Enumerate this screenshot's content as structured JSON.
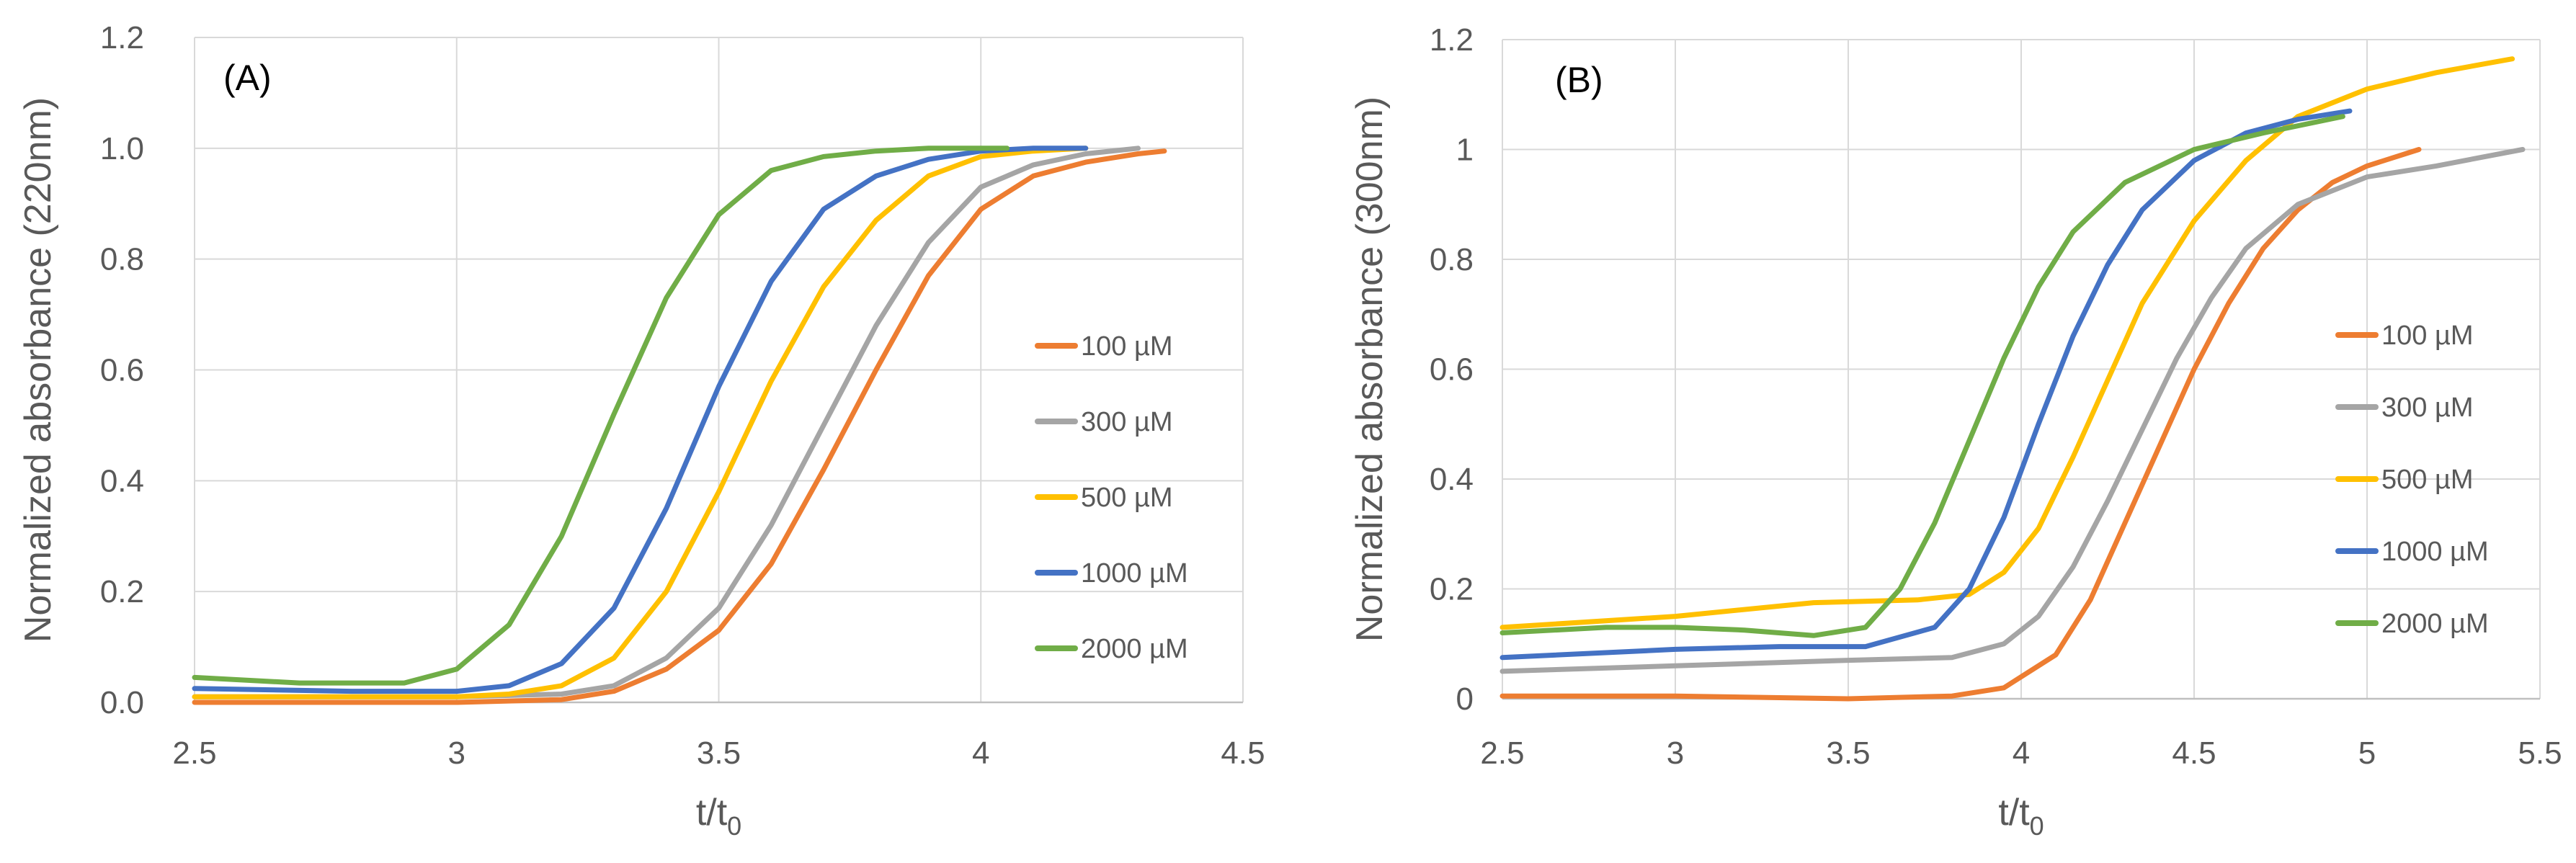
{
  "chart_data": [
    {
      "type": "line",
      "panel_label": "(A)",
      "xlabel_main": "t/t",
      "xlabel_sub": "0",
      "ylabel": "Normalized absorbance (220nm)",
      "xlim": [
        2.5,
        4.5
      ],
      "ylim": [
        0,
        1.2
      ],
      "xticks": [
        "2.5",
        "3",
        "3.5",
        "4",
        "4.5"
      ],
      "xtick_values": [
        2.5,
        3,
        3.5,
        4,
        4.5
      ],
      "yticks": [
        "0.0",
        "0.2",
        "0.4",
        "0.6",
        "0.8",
        "1.0",
        "1.2"
      ],
      "ytick_values": [
        0,
        0.2,
        0.4,
        0.6,
        0.8,
        1.0,
        1.2
      ],
      "grid": true,
      "legend_position": "right",
      "series": [
        {
          "name": "100 µM",
          "color": "#ED7D31",
          "x": [
            2.5,
            2.8,
            3.0,
            3.2,
            3.3,
            3.4,
            3.5,
            3.6,
            3.7,
            3.8,
            3.9,
            4.0,
            4.1,
            4.2,
            4.3,
            4.35
          ],
          "y": [
            0.0,
            0.0,
            0.0,
            0.005,
            0.02,
            0.06,
            0.13,
            0.25,
            0.42,
            0.6,
            0.77,
            0.89,
            0.95,
            0.975,
            0.99,
            0.995
          ]
        },
        {
          "name": "300 µM",
          "color": "#A5A5A5",
          "x": [
            2.5,
            2.8,
            3.0,
            3.2,
            3.3,
            3.4,
            3.5,
            3.6,
            3.7,
            3.8,
            3.9,
            4.0,
            4.1,
            4.2,
            4.3
          ],
          "y": [
            0.01,
            0.01,
            0.01,
            0.015,
            0.03,
            0.08,
            0.17,
            0.32,
            0.5,
            0.68,
            0.83,
            0.93,
            0.97,
            0.99,
            1.0
          ]
        },
        {
          "name": "500 µM",
          "color": "#FFC000",
          "x": [
            2.5,
            2.8,
            3.0,
            3.1,
            3.2,
            3.3,
            3.4,
            3.5,
            3.6,
            3.7,
            3.8,
            3.9,
            4.0,
            4.1,
            4.2
          ],
          "y": [
            0.01,
            0.01,
            0.01,
            0.015,
            0.03,
            0.08,
            0.2,
            0.38,
            0.58,
            0.75,
            0.87,
            0.95,
            0.985,
            0.995,
            1.0
          ]
        },
        {
          "name": "1000 µM",
          "color": "#4472C4",
          "x": [
            2.5,
            2.8,
            3.0,
            3.1,
            3.2,
            3.3,
            3.4,
            3.5,
            3.6,
            3.7,
            3.8,
            3.9,
            4.0,
            4.1,
            4.2
          ],
          "y": [
            0.025,
            0.02,
            0.02,
            0.03,
            0.07,
            0.17,
            0.35,
            0.57,
            0.76,
            0.89,
            0.95,
            0.98,
            0.995,
            1.0,
            1.0
          ]
        },
        {
          "name": "2000 µM",
          "color": "#70AD47",
          "x": [
            2.5,
            2.7,
            2.9,
            3.0,
            3.1,
            3.2,
            3.3,
            3.4,
            3.5,
            3.6,
            3.7,
            3.8,
            3.9,
            4.0,
            4.05
          ],
          "y": [
            0.045,
            0.035,
            0.035,
            0.06,
            0.14,
            0.3,
            0.52,
            0.73,
            0.88,
            0.96,
            0.985,
            0.995,
            1.0,
            1.0,
            1.0
          ]
        }
      ]
    },
    {
      "type": "line",
      "panel_label": "(B)",
      "xlabel_main": "t/t",
      "xlabel_sub": "0",
      "ylabel": "Normalized absorbance (300nm)",
      "xlim": [
        2.5,
        5.5
      ],
      "ylim": [
        0,
        1.2
      ],
      "xticks": [
        "2.5",
        "3",
        "3.5",
        "4",
        "4.5",
        "5",
        "5.5"
      ],
      "xtick_values": [
        2.5,
        3,
        3.5,
        4,
        4.5,
        5,
        5.5
      ],
      "yticks": [
        "0",
        "0.2",
        "0.4",
        "0.6",
        "0.8",
        "1",
        "1.2"
      ],
      "ytick_values": [
        0,
        0.2,
        0.4,
        0.6,
        0.8,
        1.0,
        1.2
      ],
      "grid": true,
      "legend_position": "right",
      "series": [
        {
          "name": "100 µM",
          "color": "#ED7D31",
          "x": [
            2.5,
            3.0,
            3.5,
            3.8,
            3.95,
            4.1,
            4.2,
            4.3,
            4.4,
            4.5,
            4.6,
            4.7,
            4.8,
            4.9,
            5.0,
            5.15
          ],
          "y": [
            0.005,
            0.005,
            0.0,
            0.005,
            0.02,
            0.08,
            0.18,
            0.32,
            0.46,
            0.6,
            0.72,
            0.82,
            0.89,
            0.94,
            0.97,
            1.0
          ]
        },
        {
          "name": "300 µM",
          "color": "#A5A5A5",
          "x": [
            2.5,
            3.0,
            3.5,
            3.8,
            3.95,
            4.05,
            4.15,
            4.25,
            4.35,
            4.45,
            4.55,
            4.65,
            4.8,
            5.0,
            5.2,
            5.45
          ],
          "y": [
            0.05,
            0.06,
            0.07,
            0.075,
            0.1,
            0.15,
            0.24,
            0.36,
            0.49,
            0.62,
            0.73,
            0.82,
            0.9,
            0.95,
            0.97,
            1.0
          ]
        },
        {
          "name": "500 µM",
          "color": "#FFC000",
          "x": [
            2.5,
            3.0,
            3.4,
            3.7,
            3.85,
            3.95,
            4.05,
            4.15,
            4.25,
            4.35,
            4.5,
            4.65,
            4.8,
            5.0,
            5.2,
            5.42
          ],
          "y": [
            0.13,
            0.15,
            0.175,
            0.18,
            0.19,
            0.23,
            0.31,
            0.44,
            0.58,
            0.72,
            0.87,
            0.98,
            1.06,
            1.11,
            1.14,
            1.165
          ]
        },
        {
          "name": "1000 µM",
          "color": "#4472C4",
          "x": [
            2.5,
            3.0,
            3.3,
            3.55,
            3.75,
            3.85,
            3.95,
            4.05,
            4.15,
            4.25,
            4.35,
            4.5,
            4.65,
            4.8,
            4.95
          ],
          "y": [
            0.075,
            0.09,
            0.095,
            0.095,
            0.13,
            0.2,
            0.33,
            0.5,
            0.66,
            0.79,
            0.89,
            0.98,
            1.03,
            1.055,
            1.07
          ]
        },
        {
          "name": "2000 µM",
          "color": "#70AD47",
          "x": [
            2.5,
            2.8,
            3.0,
            3.2,
            3.4,
            3.55,
            3.65,
            3.75,
            3.85,
            3.95,
            4.05,
            4.15,
            4.3,
            4.5,
            4.7,
            4.93
          ],
          "y": [
            0.12,
            0.13,
            0.13,
            0.125,
            0.115,
            0.13,
            0.2,
            0.32,
            0.47,
            0.62,
            0.75,
            0.85,
            0.94,
            1.0,
            1.03,
            1.06
          ]
        }
      ]
    }
  ]
}
